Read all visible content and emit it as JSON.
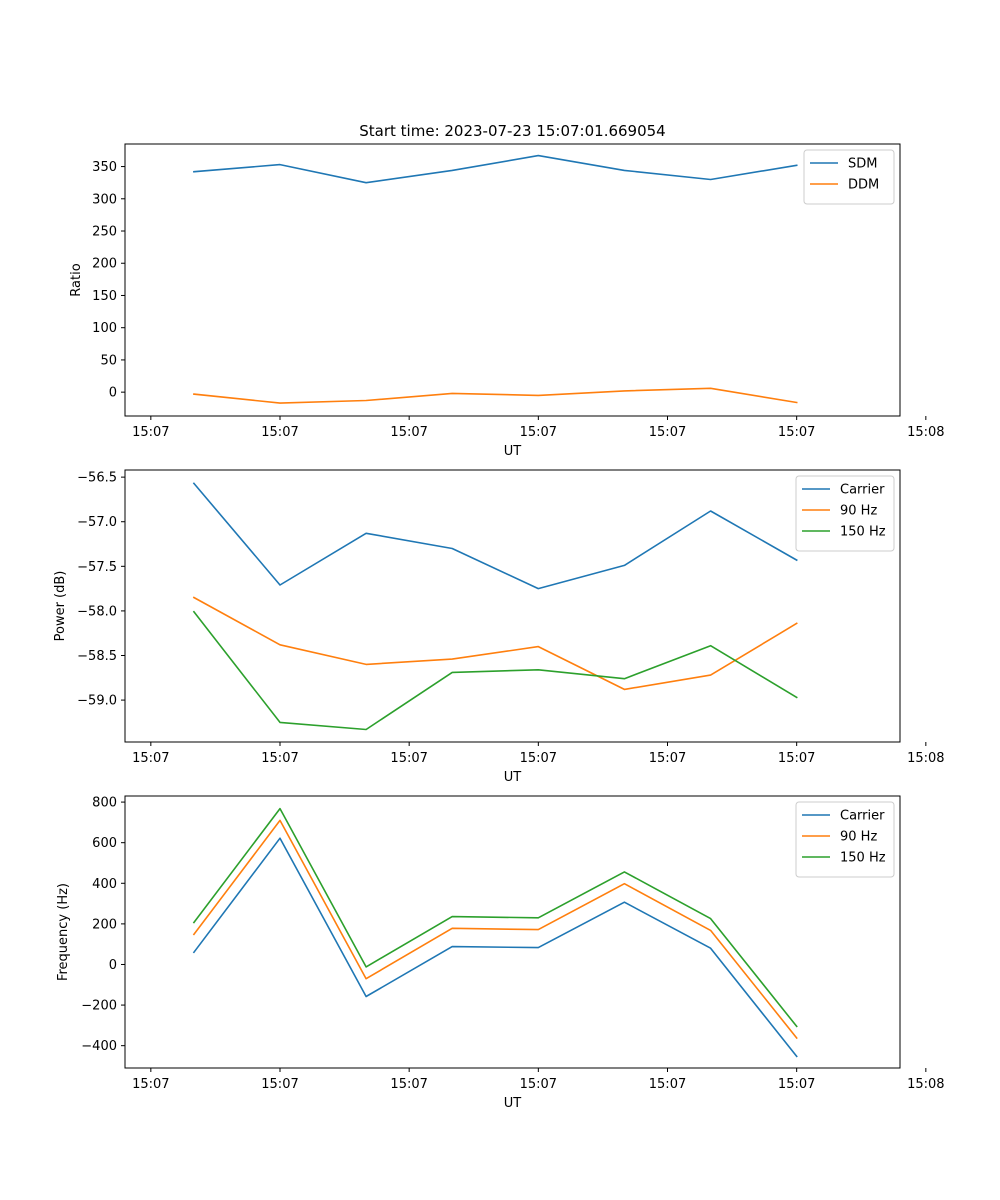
{
  "chart_data": [
    {
      "type": "line",
      "title": "Start time: 2023-07-23 15:07:01.669054",
      "xlabel": "UT",
      "ylabel": "Ratio",
      "x": [
        1,
        2,
        3,
        4,
        5,
        6,
        7,
        8
      ],
      "xlim": [
        0.2,
        9.2
      ],
      "xticks": [
        0.5,
        2,
        3.5,
        5,
        6.5,
        8,
        9.5
      ],
      "xtick_labels": [
        "15:07",
        "15:07",
        "15:07",
        "15:07",
        "15:07",
        "15:07",
        "15:08"
      ],
      "ylim": [
        -37,
        385
      ],
      "yticks": [
        0,
        50,
        100,
        150,
        200,
        250,
        300,
        350
      ],
      "ytick_labels": [
        "0",
        "50",
        "100",
        "150",
        "200",
        "250",
        "300",
        "350"
      ],
      "legend_position": "top-right",
      "grid": false,
      "series": [
        {
          "name": "SDM",
          "color": "#1f77b4",
          "values": [
            342,
            353,
            325,
            344,
            367,
            344,
            330,
            352
          ]
        },
        {
          "name": "DDM",
          "color": "#ff7f0e",
          "values": [
            -3,
            -17,
            -13,
            -2,
            -5,
            2,
            6,
            -16
          ]
        }
      ]
    },
    {
      "type": "line",
      "title": "",
      "xlabel": "UT",
      "ylabel": "Power (dB)",
      "x": [
        1,
        2,
        3,
        4,
        5,
        6,
        7,
        8
      ],
      "xlim": [
        0.2,
        9.2
      ],
      "xticks": [
        0.5,
        2,
        3.5,
        5,
        6.5,
        8,
        9.5
      ],
      "xtick_labels": [
        "15:07",
        "15:07",
        "15:07",
        "15:07",
        "15:07",
        "15:07",
        "15:08"
      ],
      "ylim": [
        -59.47,
        -56.42
      ],
      "yticks": [
        -59.0,
        -58.5,
        -58.0,
        -57.5,
        -57.0,
        -56.5
      ],
      "ytick_labels": [
        "−59.0",
        "−58.5",
        "−58.0",
        "−57.5",
        "−57.0",
        "−56.5"
      ],
      "legend_position": "top-right",
      "grid": false,
      "series": [
        {
          "name": "Carrier",
          "color": "#1f77b4",
          "values": [
            -56.57,
            -57.71,
            -57.13,
            -57.3,
            -57.75,
            -57.49,
            -56.88,
            -57.43
          ]
        },
        {
          "name": "90 Hz",
          "color": "#ff7f0e",
          "values": [
            -57.85,
            -58.38,
            -58.6,
            -58.54,
            -58.4,
            -58.88,
            -58.72,
            -58.14
          ]
        },
        {
          "name": "150 Hz",
          "color": "#2ca02c",
          "values": [
            -58.01,
            -59.25,
            -59.33,
            -58.69,
            -58.66,
            -58.76,
            -58.39,
            -58.97
          ]
        }
      ]
    },
    {
      "type": "line",
      "title": "",
      "xlabel": "UT",
      "ylabel": "Frequency (Hz)",
      "x": [
        1,
        2,
        3,
        4,
        5,
        6,
        7,
        8
      ],
      "xlim": [
        0.2,
        9.2
      ],
      "xticks": [
        0.5,
        2,
        3.5,
        5,
        6.5,
        8,
        9.5
      ],
      "xtick_labels": [
        "15:07",
        "15:07",
        "15:07",
        "15:07",
        "15:07",
        "15:07",
        "15:08"
      ],
      "ylim": [
        -510,
        830
      ],
      "yticks": [
        -400,
        -200,
        0,
        200,
        400,
        600,
        800
      ],
      "ytick_labels": [
        "−400",
        "−200",
        "0",
        "200",
        "400",
        "600",
        "800"
      ],
      "legend_position": "top-right",
      "grid": false,
      "series": [
        {
          "name": "Carrier",
          "color": "#1f77b4",
          "values": [
            60,
            622,
            -158,
            88,
            83,
            307,
            80,
            -453
          ]
        },
        {
          "name": "90 Hz",
          "color": "#ff7f0e",
          "values": [
            148,
            710,
            -70,
            178,
            172,
            398,
            168,
            -362
          ]
        },
        {
          "name": "150 Hz",
          "color": "#2ca02c",
          "values": [
            207,
            768,
            -12,
            236,
            230,
            456,
            226,
            -305
          ]
        }
      ]
    }
  ]
}
